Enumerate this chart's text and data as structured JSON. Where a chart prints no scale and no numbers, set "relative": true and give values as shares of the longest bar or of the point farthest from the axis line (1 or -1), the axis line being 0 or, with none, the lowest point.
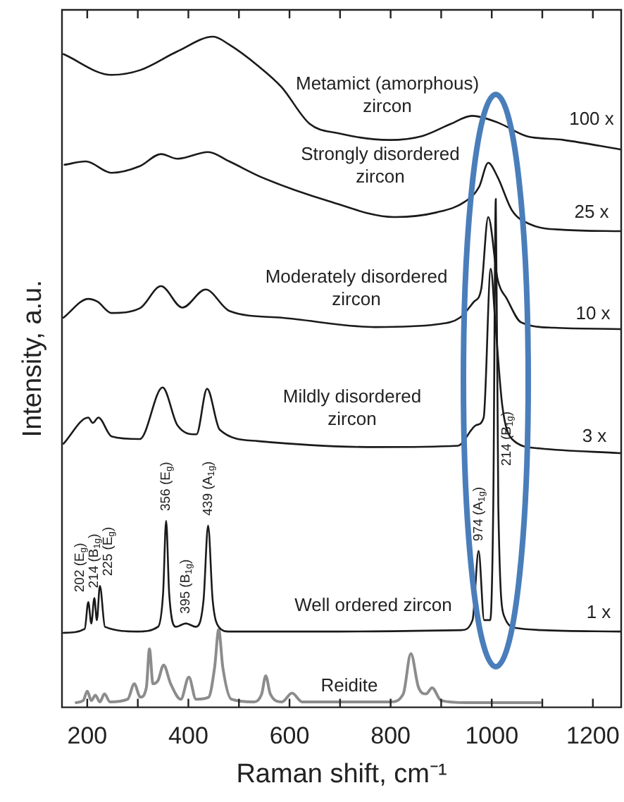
{
  "chart_data": {
    "type": "line",
    "relative": true,
    "xlabel": "Raman shift, cm⁻¹",
    "ylabel": "Intensity, a.u.",
    "xlim": [
      150,
      1256
    ],
    "xticks": [
      200,
      {
        "value": 300,
        "label": null
      },
      400,
      {
        "value": 500,
        "label": null
      },
      600,
      {
        "value": 700,
        "label": null
      },
      800,
      {
        "value": 900,
        "label": null
      },
      1000,
      {
        "value": 1100,
        "label": null
      },
      1200
    ],
    "legend": false,
    "grid": false,
    "marker": "none",
    "line_style": "solid",
    "series": [
      {
        "name": "Metamict (amorphous) zircon",
        "color": "#1a1a1a",
        "x": [
          153,
          248,
          304,
          378,
          449,
          481,
          537,
          584,
          640,
          696,
          798,
          863,
          919,
          961,
          1012,
          1068,
          1142,
          1254
        ],
        "values": [
          0.974,
          0.943,
          0.95,
          0.978,
          1,
          0.988,
          0.957,
          0.925,
          0.87,
          0.856,
          0.846,
          0.852,
          0.87,
          0.882,
          0.872,
          0.852,
          0.846,
          0.832
        ]
      },
      {
        "name": "Strongly disordered zircon",
        "color": "#1a1a1a",
        "x": [
          155,
          197,
          248,
          304,
          346,
          378,
          439,
          481,
          546,
          677,
          807,
          891,
          947,
          975,
          993,
          1012,
          1040,
          1077,
          1142,
          1254
        ],
        "values": [
          0.809,
          0.814,
          0.797,
          0.807,
          0.825,
          0.818,
          0.828,
          0.814,
          0.79,
          0.755,
          0.731,
          0.738,
          0.754,
          0.776,
          0.812,
          0.79,
          0.741,
          0.72,
          0.712,
          0.71
        ]
      },
      {
        "name": "Moderately disordered zircon",
        "color": "#1a1a1a",
        "x": [
          153,
          202,
          220,
          248,
          304,
          346,
          388,
          434,
          481,
          584,
          770,
          891,
          937,
          965,
          979,
          993,
          1012,
          1030,
          1058,
          1123,
          1254
        ],
        "values": [
          0.581,
          0.609,
          0.605,
          0.588,
          0.595,
          0.628,
          0.596,
          0.623,
          0.591,
          0.581,
          0.567,
          0.571,
          0.581,
          0.605,
          0.623,
          0.731,
          0.637,
          0.609,
          0.574,
          0.566,
          0.564
        ]
      },
      {
        "name": "Mildly disordered zircon",
        "color": "#1a1a1a",
        "x": [
          153,
          202,
          211,
          222,
          248,
          304,
          349,
          378,
          416,
          437,
          462,
          537,
          770,
          933,
          970,
          984,
          998,
          1007,
          1021,
          1040,
          1095,
          1254
        ],
        "values": [
          0.393,
          0.432,
          0.424,
          0.432,
          0.404,
          0.4,
          0.477,
          0.421,
          0.407,
          0.475,
          0.414,
          0.397,
          0.388,
          0.39,
          0.421,
          0.432,
          0.654,
          0.574,
          0.449,
          0.4,
          0.386,
          0.379
        ]
      },
      {
        "name": "Well ordered zircon",
        "color": "#1a1a1a",
        "x": [
          153,
          195,
          202,
          208,
          214,
          219,
          225,
          235,
          300,
          340,
          350,
          356,
          362,
          375,
          395,
          415,
          430,
          439,
          448,
          460,
          480,
          700,
          940,
          962,
          974,
          985,
          997,
          1003,
          1008,
          1013,
          1025,
          1050,
          1100,
          1254
        ],
        "values": [
          0.111,
          0.117,
          0.157,
          0.125,
          0.163,
          0.13,
          0.181,
          0.12,
          0.113,
          0.12,
          0.17,
          0.278,
          0.17,
          0.12,
          0.125,
          0.12,
          0.16,
          0.271,
          0.16,
          0.12,
          0.113,
          0.113,
          0.115,
          0.13,
          0.233,
          0.13,
          0.13,
          0.3,
          0.758,
          0.3,
          0.135,
          0.118,
          0.115,
          0.113
        ]
      },
      {
        "name": "Reidite",
        "color": "#8c8c8c",
        "x": [
          178,
          192,
          200,
          208,
          216,
          225,
          234,
          245,
          280,
          293,
          305,
          317,
          323,
          330,
          340,
          351,
          365,
          385,
          401,
          415,
          440,
          452,
          460,
          468,
          485,
          530,
          545,
          553,
          562,
          585,
          605,
          625,
          800,
          825,
          840,
          855,
          870,
          882,
          900,
          950,
          1096
        ],
        "values": [
          0.007,
          0.01,
          0.024,
          0.01,
          0.018,
          0.008,
          0.02,
          0.008,
          0.012,
          0.035,
          0.015,
          0.03,
          0.087,
          0.035,
          0.04,
          0.063,
          0.035,
          0.012,
          0.045,
          0.012,
          0.015,
          0.06,
          0.116,
          0.06,
          0.012,
          0.008,
          0.02,
          0.047,
          0.02,
          0.008,
          0.021,
          0.008,
          0.008,
          0.02,
          0.08,
          0.03,
          0.02,
          0.029,
          0.01,
          0.007,
          0.007
        ]
      }
    ],
    "annotations": [
      {
        "text": "202 (E$_{g}$)",
        "x": 202,
        "y": 0.157
      },
      {
        "text": "214 (B$_{1g}$)",
        "x": 214,
        "y": 0.163
      },
      {
        "text": "225 (E$_{g}$)",
        "x": 225,
        "y": 0.181
      },
      {
        "text": "356 (E$_{g}$)",
        "x": 356,
        "y": 0.278
      },
      {
        "text": "395 (B$_{1g}$)",
        "x": 395,
        "y": 0.125
      },
      {
        "text": "439 (A$_{1g}$)",
        "x": 439,
        "y": 0.271
      },
      {
        "text": "974 (A$_{1g}$)",
        "x": 974,
        "y": 0.233
      },
      {
        "text": "214 (B$_{1g}$)",
        "x": 1008,
        "y": 0.36
      },
      "100 x",
      "25 x",
      "10 x",
      "3 x",
      "1 x"
    ]
  }
}
